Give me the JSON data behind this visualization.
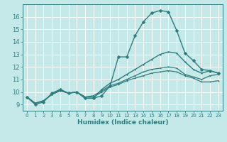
{
  "xlabel": "Humidex (Indice chaleur)",
  "background_color": "#c5e8e8",
  "grid_color": "#ffffff",
  "line_color": "#2e7d7d",
  "xlim": [
    -0.5,
    23.5
  ],
  "ylim": [
    8.5,
    17.0
  ],
  "xtick_vals": [
    0,
    1,
    2,
    3,
    4,
    5,
    6,
    7,
    8,
    9,
    10,
    11,
    12,
    13,
    14,
    15,
    16,
    17,
    18,
    19,
    20,
    21,
    22,
    23
  ],
  "ytick_vals": [
    9,
    10,
    11,
    12,
    13,
    14,
    15,
    16
  ],
  "series": [
    [
      9.6,
      9.0,
      9.2,
      9.9,
      10.2,
      9.9,
      10.0,
      9.5,
      9.5,
      9.7,
      10.5,
      12.8,
      12.8,
      14.5,
      15.6,
      16.3,
      16.5,
      16.4,
      14.9,
      13.1,
      12.5,
      11.8,
      11.7,
      11.5
    ],
    [
      9.6,
      9.1,
      9.3,
      9.8,
      10.2,
      9.9,
      10.0,
      9.5,
      9.5,
      10.2,
      10.7,
      11.0,
      11.4,
      11.8,
      12.2,
      12.6,
      13.0,
      13.2,
      13.1,
      12.4,
      11.8,
      11.5,
      11.7,
      11.5
    ],
    [
      9.6,
      9.1,
      9.3,
      9.8,
      10.1,
      9.9,
      10.0,
      9.6,
      9.7,
      10.1,
      10.5,
      10.7,
      11.0,
      11.3,
      11.6,
      11.8,
      11.9,
      12.0,
      11.9,
      11.4,
      11.2,
      11.0,
      11.3,
      11.4
    ],
    [
      9.6,
      9.1,
      9.3,
      9.8,
      10.1,
      9.9,
      10.0,
      9.6,
      9.6,
      10.0,
      10.4,
      10.6,
      10.9,
      11.1,
      11.3,
      11.5,
      11.6,
      11.7,
      11.6,
      11.3,
      11.1,
      10.8,
      10.8,
      10.9
    ]
  ],
  "markers": [
    "D",
    ".",
    ".",
    "."
  ],
  "markersizes": [
    2.5,
    2.5,
    2.0,
    2.0
  ],
  "linewidths": [
    1.0,
    1.0,
    0.9,
    0.9
  ]
}
